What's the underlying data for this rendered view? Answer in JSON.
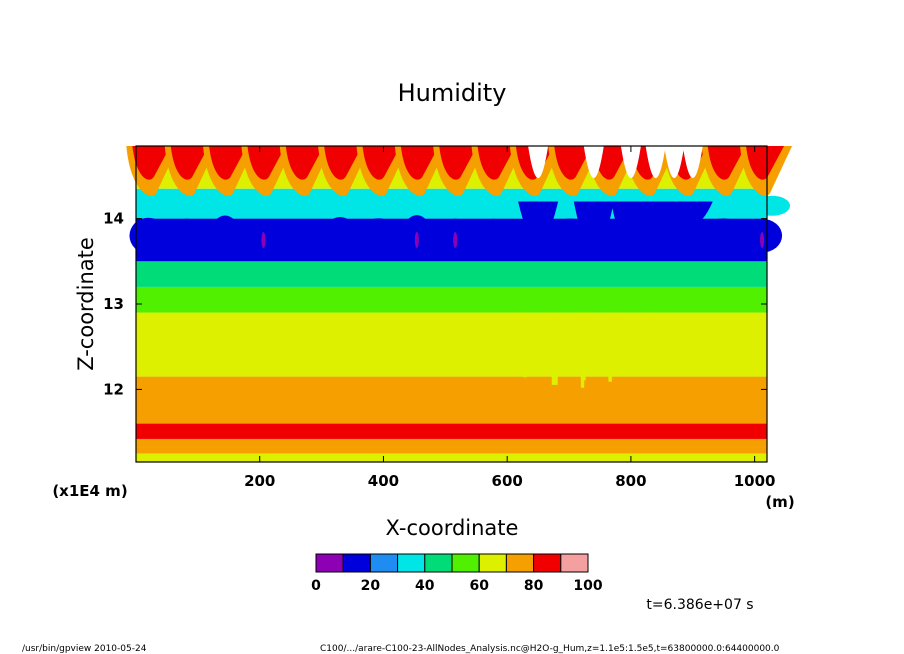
{
  "chart_data": {
    "type": "heatmap",
    "title": "Humidity",
    "xlabel": "X-coordinate",
    "ylabel": "Z-coordinate",
    "x_unit": "(m)",
    "y_scale_note": "(x1E4 m)",
    "xlim": [
      0,
      1020
    ],
    "ylim": [
      11.15,
      14.85
    ],
    "x_ticks": [
      200,
      400,
      600,
      800,
      1000
    ],
    "x_tick_labels": [
      "200",
      "400",
      "600",
      "800",
      "1000"
    ],
    "y_ticks": [
      12,
      13,
      14
    ],
    "y_tick_labels": [
      "12",
      "13",
      "14"
    ],
    "colorbar": {
      "levels": [
        0,
        10,
        20,
        30,
        40,
        50,
        60,
        70,
        80,
        90,
        100
      ],
      "tick_labels": [
        "0",
        "20",
        "40",
        "60",
        "80",
        "100"
      ],
      "colors": [
        "#8e00b4",
        "#0000dc",
        "#1e8cf0",
        "#00e6e6",
        "#00dc78",
        "#50f000",
        "#dcf000",
        "#f5a000",
        "#f00000",
        "#f5a0a0"
      ]
    },
    "bands": [
      {
        "z_range": [
          11.15,
          11.25
        ],
        "value": 65
      },
      {
        "z_range": [
          11.25,
          11.32
        ],
        "value": 75
      },
      {
        "z_range": [
          11.32,
          11.42
        ],
        "value": 78
      },
      {
        "z_range": [
          11.42,
          11.6
        ],
        "value": 85
      },
      {
        "z_range": [
          11.6,
          12.15
        ],
        "value": 75
      },
      {
        "z_range": [
          12.15,
          12.9
        ],
        "value": 65
      },
      {
        "z_range": [
          12.9,
          13.2
        ],
        "value": 55
      },
      {
        "z_range": [
          13.2,
          13.5
        ],
        "value": 42
      },
      {
        "z_range": [
          13.5,
          14.0
        ],
        "value": 18
      },
      {
        "z_range": [
          14.0,
          14.35
        ],
        "value": 35
      },
      {
        "z_range": [
          14.35,
          14.6
        ],
        "value": 60
      },
      {
        "z_range": [
          14.6,
          14.85
        ],
        "value": 90
      }
    ],
    "time_label": "t=6.386e+07 s"
  },
  "footer": {
    "left": "/usr/bin/gpview  2010-05-24",
    "right": "C100/.../arare-C100-23-AllNodes_Analysis.nc@H2O-g_Hum,z=1.1e5:1.5e5,t=63800000.0:64400000.0"
  }
}
